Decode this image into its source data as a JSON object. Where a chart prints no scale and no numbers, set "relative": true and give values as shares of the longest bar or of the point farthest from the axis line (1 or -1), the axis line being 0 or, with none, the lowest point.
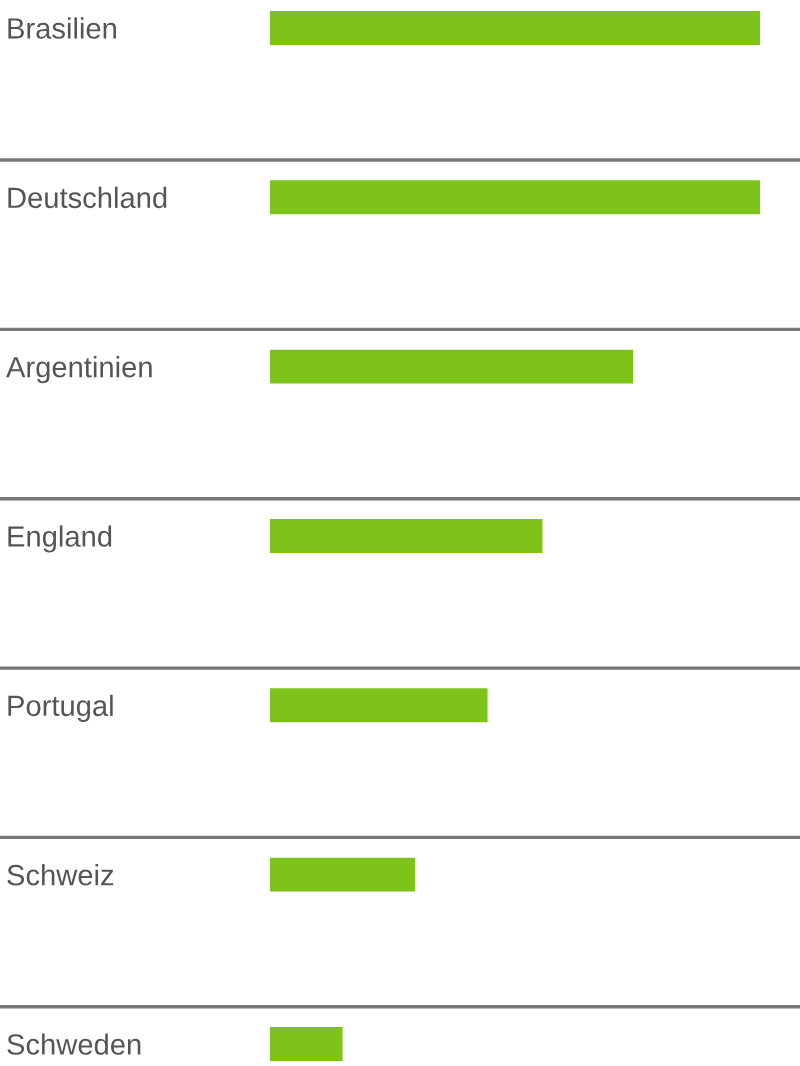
{
  "chart_data": {
    "type": "bar",
    "orientation": "horizontal",
    "relative": true,
    "categories": [
      "Brasilien",
      "Deutschland",
      "Argentinien",
      "England",
      "Portugal",
      "Schweiz",
      "Schweden"
    ],
    "values": [
      1,
      1,
      0.741,
      0.556,
      0.444,
      0.296,
      0.148
    ],
    "color": "#7dc31a",
    "grid": "y"
  }
}
